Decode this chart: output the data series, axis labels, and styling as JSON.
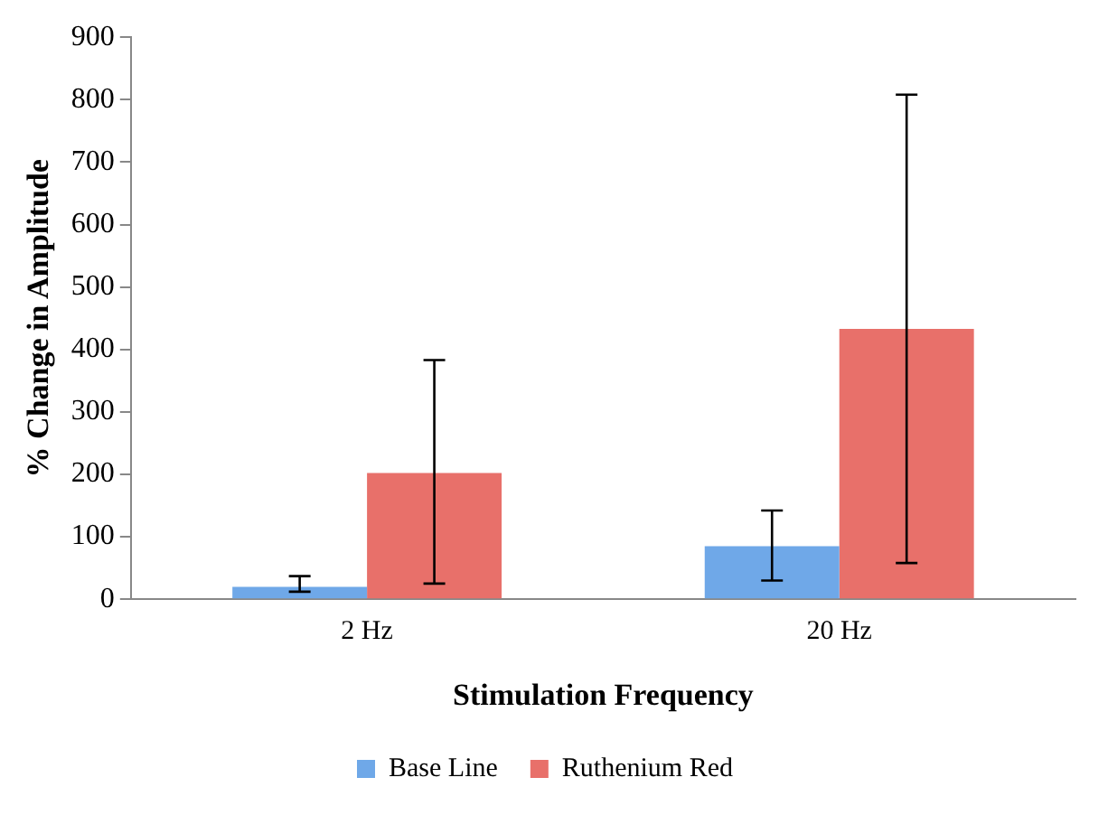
{
  "chart_data": {
    "type": "bar",
    "xlabel": "Stimulation Frequency",
    "ylabel": "% Change in Amplitude",
    "categories": [
      "2 Hz",
      "20 Hz"
    ],
    "series": [
      {
        "name": "Base Line",
        "color": "#6fa8e8",
        "values": [
          20,
          85
        ],
        "errors": [
          [
            12,
            37
          ],
          [
            30,
            142
          ]
        ]
      },
      {
        "name": "Ruthenium Red",
        "color": "#e8706a",
        "values": [
          202,
          433
        ],
        "errors": [
          [
            25,
            383
          ],
          [
            58,
            808
          ]
        ]
      }
    ],
    "ylim": [
      0,
      900
    ],
    "yticks": [
      0,
      100,
      200,
      300,
      400,
      500,
      600,
      700,
      800,
      900
    ],
    "grid": false,
    "legend": "bottom"
  }
}
